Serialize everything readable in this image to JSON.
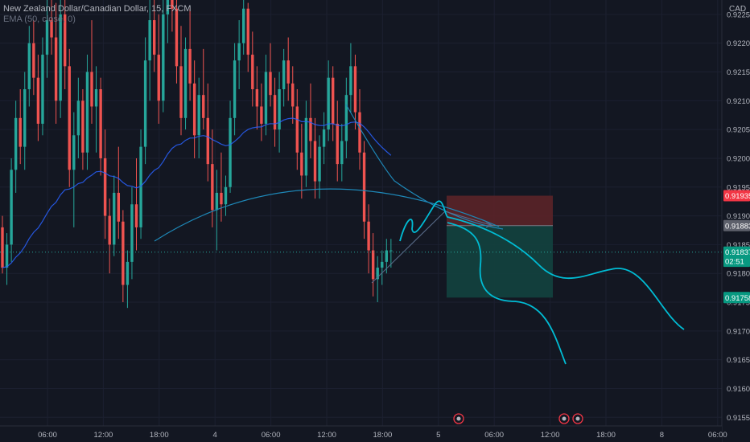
{
  "legend": {
    "symbol_line": "New Zealand Dollar/Canadian Dollar, 15, FXCM",
    "ema_line": "EMA (50, close, 0)"
  },
  "colors": {
    "background": "#131722",
    "up": "#26a69a",
    "down": "#ef5350",
    "ema": "#2962ff",
    "drawing": "#00bcd4",
    "risk_zone": "#5b2328",
    "reward_zone": "#13433f"
  },
  "chart_data": {
    "type": "candlestick",
    "symbol": "New Zealand Dollar/Canadian Dollar",
    "interval": "15",
    "source": "FXCM",
    "currency": "CAD",
    "indicator": "EMA (50, close, 0)",
    "ylim": [
      0.91535,
      0.92275
    ],
    "y_ticks": [
      "0.92250",
      "0.92200",
      "0.92150",
      "0.92100",
      "0.92050",
      "0.92000",
      "0.91950",
      "0.91900",
      "0.91850",
      "0.91800",
      "0.91750",
      "0.91700",
      "0.91650",
      "0.91600",
      "0.91550"
    ],
    "x_ticks": [
      "06:00",
      "12:00",
      "18:00",
      "4",
      "06:00",
      "12:00",
      "18:00",
      "5",
      "06:00",
      "12:00",
      "18:00",
      "8",
      "06:00"
    ],
    "price_labels": [
      {
        "label": "0.91935",
        "value": 0.91935,
        "color": "#f23645"
      },
      {
        "label": "0.91883",
        "value": 0.91883,
        "color": "#5d606b"
      },
      {
        "label": "0.91837",
        "value": 0.91837,
        "color": "#089981"
      },
      {
        "label": "02:51",
        "value": 0.91821,
        "color": "#089981"
      },
      {
        "label": "0.91758",
        "value": 0.91758,
        "color": "#089981"
      }
    ],
    "position": {
      "entry": 0.91883,
      "stop": 0.91935,
      "target": 0.91758
    },
    "last_price": 0.91837,
    "candles": [
      [
        0.9188,
        0.919,
        0.918,
        0.9181
      ],
      [
        0.9181,
        0.9187,
        0.9178,
        0.9185
      ],
      [
        0.9185,
        0.92,
        0.9182,
        0.9198
      ],
      [
        0.9198,
        0.921,
        0.9194,
        0.9207
      ],
      [
        0.9207,
        0.9212,
        0.9199,
        0.9202
      ],
      [
        0.9202,
        0.9215,
        0.9198,
        0.9212
      ],
      [
        0.9212,
        0.9223,
        0.9209,
        0.922
      ],
      [
        0.922,
        0.9224,
        0.9211,
        0.9214
      ],
      [
        0.9214,
        0.9218,
        0.9203,
        0.9206
      ],
      [
        0.9206,
        0.9221,
        0.9204,
        0.9218
      ],
      [
        0.9218,
        0.923,
        0.9214,
        0.9224
      ],
      [
        0.9224,
        0.9233,
        0.9218,
        0.9221
      ],
      [
        0.9221,
        0.9227,
        0.9206,
        0.921
      ],
      [
        0.921,
        0.9229,
        0.9207,
        0.9225
      ],
      [
        0.9225,
        0.9231,
        0.9212,
        0.9216
      ],
      [
        0.9216,
        0.9219,
        0.9195,
        0.9198
      ],
      [
        0.9198,
        0.9208,
        0.9188,
        0.9204
      ],
      [
        0.9204,
        0.9214,
        0.92,
        0.921
      ],
      [
        0.921,
        0.9212,
        0.9198,
        0.9201
      ],
      [
        0.9201,
        0.9218,
        0.9198,
        0.9215
      ],
      [
        0.9215,
        0.9224,
        0.9206,
        0.9209
      ],
      [
        0.9209,
        0.9216,
        0.9201,
        0.9212
      ],
      [
        0.9212,
        0.9214,
        0.9197,
        0.92
      ],
      [
        0.92,
        0.9205,
        0.9186,
        0.919
      ],
      [
        0.919,
        0.9193,
        0.918,
        0.9185
      ],
      [
        0.9185,
        0.9197,
        0.9183,
        0.9194
      ],
      [
        0.9194,
        0.9202,
        0.9186,
        0.9189
      ],
      [
        0.9189,
        0.9191,
        0.9175,
        0.9178
      ],
      [
        0.9178,
        0.9184,
        0.9174,
        0.9182
      ],
      [
        0.9182,
        0.9195,
        0.9179,
        0.9192
      ],
      [
        0.9192,
        0.92,
        0.9184,
        0.9188
      ],
      [
        0.9188,
        0.9205,
        0.9186,
        0.9202
      ],
      [
        0.9202,
        0.9221,
        0.9199,
        0.9217
      ],
      [
        0.9217,
        0.9228,
        0.921,
        0.9224
      ],
      [
        0.9224,
        0.9231,
        0.9215,
        0.9218
      ],
      [
        0.9218,
        0.9225,
        0.9206,
        0.921
      ],
      [
        0.921,
        0.9228,
        0.9208,
        0.9225
      ],
      [
        0.9225,
        0.9236,
        0.922,
        0.9233
      ],
      [
        0.9233,
        0.9237,
        0.9222,
        0.9226
      ],
      [
        0.9226,
        0.9229,
        0.9213,
        0.9216
      ],
      [
        0.9216,
        0.9223,
        0.9204,
        0.9207
      ],
      [
        0.9207,
        0.9221,
        0.9205,
        0.9219
      ],
      [
        0.9219,
        0.9226,
        0.921,
        0.9213
      ],
      [
        0.9213,
        0.9217,
        0.92,
        0.9204
      ],
      [
        0.9204,
        0.9214,
        0.92,
        0.9211
      ],
      [
        0.9211,
        0.9219,
        0.9205,
        0.9207
      ],
      [
        0.9207,
        0.9213,
        0.9196,
        0.9199
      ],
      [
        0.9199,
        0.9205,
        0.9188,
        0.9191
      ],
      [
        0.9191,
        0.9198,
        0.9184,
        0.9194
      ],
      [
        0.9194,
        0.9201,
        0.9189,
        0.9192
      ],
      [
        0.9192,
        0.9197,
        0.919,
        0.9195
      ],
      [
        0.9195,
        0.921,
        0.9194,
        0.9207
      ],
      [
        0.9207,
        0.922,
        0.9204,
        0.9217
      ],
      [
        0.9217,
        0.9224,
        0.9212,
        0.922
      ],
      [
        0.922,
        0.9229,
        0.9218,
        0.9226
      ],
      [
        0.9226,
        0.9227,
        0.9215,
        0.9218
      ],
      [
        0.9218,
        0.9222,
        0.9209,
        0.9212
      ],
      [
        0.9212,
        0.9216,
        0.9205,
        0.9209
      ],
      [
        0.9209,
        0.9213,
        0.9203,
        0.9206
      ],
      [
        0.9206,
        0.9218,
        0.9204,
        0.9215
      ],
      [
        0.9215,
        0.922,
        0.9209,
        0.9211
      ],
      [
        0.9211,
        0.9214,
        0.9202,
        0.9205
      ],
      [
        0.9205,
        0.9215,
        0.9201,
        0.9212
      ],
      [
        0.9212,
        0.9219,
        0.9209,
        0.9217
      ],
      [
        0.9217,
        0.9221,
        0.921,
        0.9213
      ],
      [
        0.9213,
        0.9216,
        0.9206,
        0.9209
      ],
      [
        0.9209,
        0.9212,
        0.9198,
        0.9201
      ],
      [
        0.9201,
        0.9206,
        0.9193,
        0.9197
      ],
      [
        0.9197,
        0.921,
        0.9195,
        0.9207
      ],
      [
        0.9207,
        0.9213,
        0.92,
        0.9203
      ],
      [
        0.9203,
        0.9207,
        0.9193,
        0.9196
      ],
      [
        0.9196,
        0.9204,
        0.9193,
        0.9202
      ],
      [
        0.9202,
        0.9208,
        0.9199,
        0.9205
      ],
      [
        0.9205,
        0.9217,
        0.9203,
        0.9214
      ],
      [
        0.9214,
        0.9216,
        0.9203,
        0.9206
      ],
      [
        0.9206,
        0.921,
        0.9196,
        0.9199
      ],
      [
        0.9199,
        0.9206,
        0.9196,
        0.9203
      ],
      [
        0.9203,
        0.9214,
        0.92,
        0.9211
      ],
      [
        0.9211,
        0.922,
        0.9208,
        0.9216
      ],
      [
        0.9216,
        0.9218,
        0.9205,
        0.9208
      ],
      [
        0.9208,
        0.9212,
        0.9198,
        0.9201
      ],
      [
        0.9201,
        0.9203,
        0.9186,
        0.9189
      ],
      [
        0.9189,
        0.9192,
        0.918,
        0.9184
      ],
      [
        0.9184,
        0.9187,
        0.9176,
        0.9179
      ],
      [
        0.9179,
        0.9183,
        0.9175,
        0.9181
      ],
      [
        0.9181,
        0.9184,
        0.9178,
        0.9182
      ],
      [
        0.9182,
        0.9186,
        0.918,
        0.9184
      ],
      [
        0.9184,
        0.9186,
        0.9181,
        0.9184
      ]
    ]
  }
}
